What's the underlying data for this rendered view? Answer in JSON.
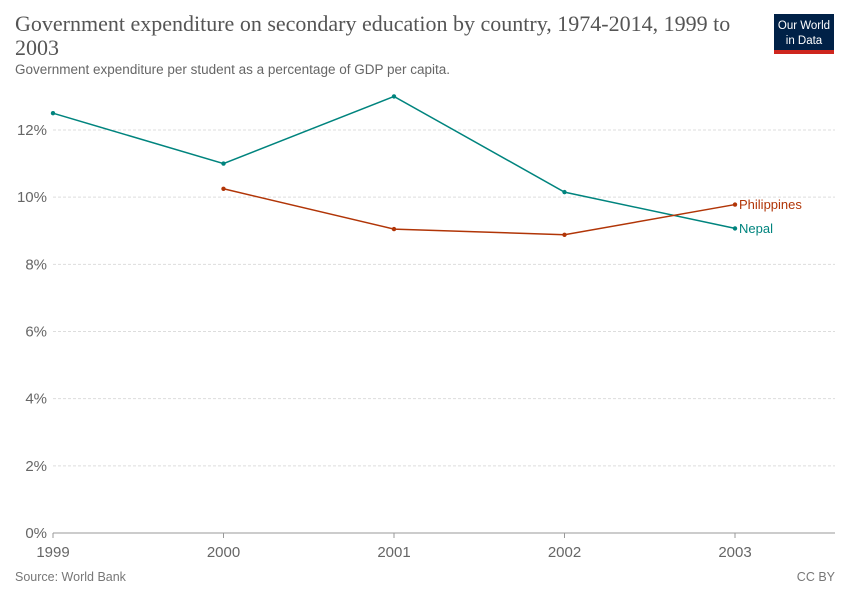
{
  "header": {
    "title": "Government expenditure on secondary education by country, 1974-2014, 1999 to 2003",
    "subtitle": "Government expenditure per student as a percentage of GDP per capita.",
    "logo_line1": "Our World",
    "logo_line2": "in Data"
  },
  "footer": {
    "source": "Source: World Bank",
    "license": "CC BY"
  },
  "chart_data": {
    "type": "line",
    "x": [
      1999,
      2000,
      2001,
      2002,
      2003
    ],
    "x_ticks": [
      "1999",
      "2000",
      "2001",
      "2002",
      "2003"
    ],
    "y_ticks": [
      "0%",
      "2%",
      "4%",
      "6%",
      "8%",
      "10%",
      "12%"
    ],
    "ylim": [
      0,
      12
    ],
    "grid": "horizontal dashed",
    "legend": "inline labels at line ends",
    "series": [
      {
        "name": "Nepal",
        "color": "#00847e",
        "x": [
          1999,
          2000,
          2001,
          2002,
          2003
        ],
        "values": [
          12.5,
          11.0,
          13.0,
          10.15,
          9.07
        ]
      },
      {
        "name": "Philippines",
        "color": "#b13507",
        "x": [
          2000,
          2001,
          2002,
          2003
        ],
        "values": [
          10.25,
          9.05,
          8.88,
          9.78
        ]
      }
    ]
  }
}
